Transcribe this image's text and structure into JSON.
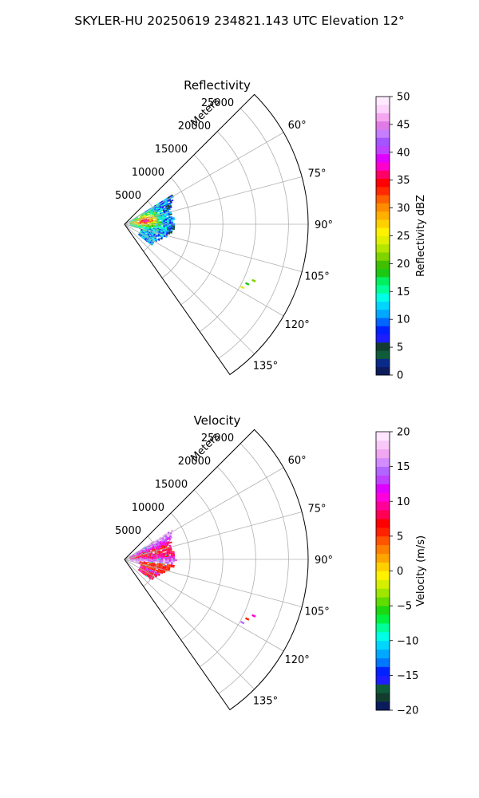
{
  "figure": {
    "suptitle": "SKYLER-HU  20250619  234821.143 UTC Elevation 12°"
  },
  "chart_data": [
    {
      "type": "heatmap",
      "projection": "polar-sector",
      "title": "Reflectivity",
      "r_axis_label": "Meters",
      "r_ticks": [
        5000,
        10000,
        15000,
        20000,
        25000
      ],
      "r_tick_labels": [
        "5000",
        "10000",
        "15000",
        "20000",
        "25000"
      ],
      "rlim": [
        0,
        28000
      ],
      "theta_range_deg": [
        45,
        145
      ],
      "theta_ticks": [
        60,
        75,
        90,
        105,
        120,
        135
      ],
      "theta_tick_labels": [
        "60°",
        "75°",
        "90°",
        "105°",
        "120°",
        "135°"
      ],
      "grid": true,
      "colorbar": {
        "label": "Reflectivity dBZ",
        "range": [
          0,
          50
        ],
        "ticks": [
          0,
          5,
          10,
          15,
          20,
          25,
          30,
          35,
          40,
          45,
          50
        ],
        "tick_labels": [
          "0",
          "5",
          "10",
          "15",
          "20",
          "25",
          "30",
          "35",
          "40",
          "45",
          "50"
        ],
        "colors": [
          "#0b1b5c",
          "#0a2a8a",
          "#0f5c3a",
          "#123d2e",
          "#1d1dff",
          "#0022ff",
          "#0066ff",
          "#00a8ff",
          "#00d6ff",
          "#00ffe6",
          "#00ff99",
          "#00f060",
          "#1cc812",
          "#3fbf00",
          "#7fd400",
          "#b4e600",
          "#e0f000",
          "#fff200",
          "#ffd000",
          "#ffb000",
          "#ff8c00",
          "#ff6000",
          "#ff2a00",
          "#ff0000",
          "#ff0066",
          "#ff00cc",
          "#e000ff",
          "#c040ff",
          "#a455ff",
          "#c77dff",
          "#e07ae6",
          "#f5a6f0",
          "#fbd3fb",
          "#ffeaff"
        ]
      },
      "echo_region": {
        "theta_deg": [
          58,
          128
        ],
        "r_m": [
          800,
          8600
        ],
        "peak_value": 48,
        "typical_value": 22,
        "min_value": 2
      }
    },
    {
      "type": "heatmap",
      "projection": "polar-sector",
      "title": "Velocity",
      "r_axis_label": "Meters",
      "r_ticks": [
        5000,
        10000,
        15000,
        20000,
        25000
      ],
      "r_tick_labels": [
        "5000",
        "10000",
        "15000",
        "20000",
        "25000"
      ],
      "rlim": [
        0,
        28000
      ],
      "theta_range_deg": [
        45,
        145
      ],
      "theta_ticks": [
        60,
        75,
        90,
        105,
        120,
        135
      ],
      "theta_tick_labels": [
        "60°",
        "75°",
        "90°",
        "105°",
        "120°",
        "135°"
      ],
      "grid": true,
      "colorbar": {
        "label": "Velocity (m/s)",
        "range": [
          -20,
          20
        ],
        "ticks": [
          -20,
          -15,
          -10,
          -5,
          0,
          5,
          10,
          15,
          20
        ],
        "tick_labels": [
          "−20",
          "−15",
          "−10",
          "−5",
          "0",
          "5",
          "10",
          "15",
          "20"
        ],
        "colors": [
          "#0b1b5c",
          "#123d2e",
          "#0f5c3a",
          "#1d1dff",
          "#0022ff",
          "#0077ff",
          "#00a8ff",
          "#00d6ff",
          "#00ffe6",
          "#00ff99",
          "#00f040",
          "#1cd812",
          "#5fdc00",
          "#9fe600",
          "#d4f000",
          "#fff200",
          "#ffd000",
          "#ffa500",
          "#ff8000",
          "#ff5500",
          "#ff2200",
          "#ff0000",
          "#ff0055",
          "#ff0099",
          "#ff00dd",
          "#e000ff",
          "#c040ff",
          "#b366ff",
          "#d38cff",
          "#f0a6f0",
          "#f8c8f8",
          "#ffe6ff"
        ]
      },
      "echo_region": {
        "theta_deg": [
          58,
          128
        ],
        "r_m": [
          800,
          8600
        ],
        "dominant_value": 12,
        "min_value": -12,
        "max_value": 20
      }
    }
  ]
}
